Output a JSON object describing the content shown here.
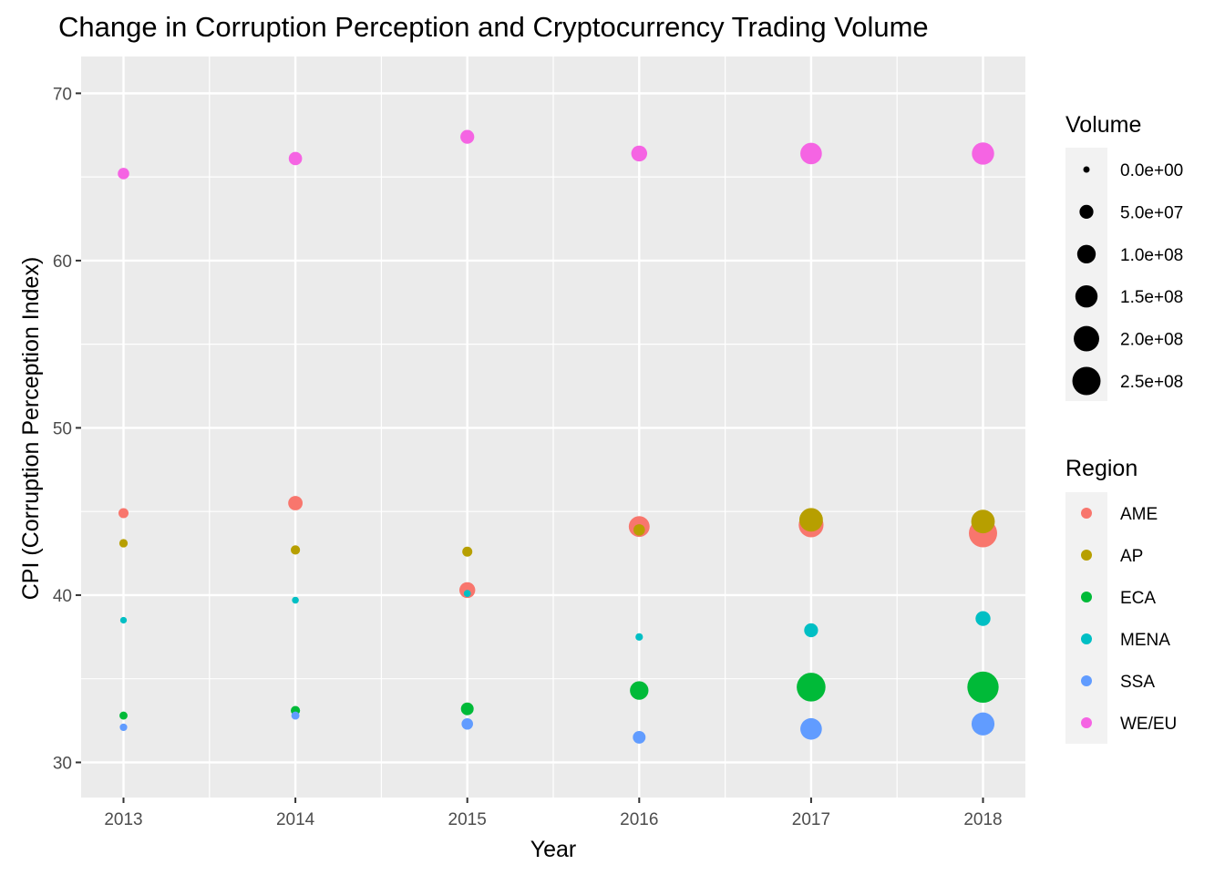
{
  "chart_data": {
    "type": "scatter",
    "title": "Change in Corruption Perception and Cryptocurrency Trading Volume",
    "xlabel": "Year",
    "ylabel": "CPI (Corruption Perception Index)",
    "x_categories": [
      "2013",
      "2014",
      "2015",
      "2016",
      "2017",
      "2018"
    ],
    "ylim": [
      27.9,
      72.2
    ],
    "y_ticks": [
      30,
      40,
      50,
      60,
      70
    ],
    "grid": true,
    "size_legend": {
      "title": "Volume",
      "breaks": [
        0,
        50000000,
        100000000,
        150000000,
        200000000,
        250000000
      ],
      "labels": [
        "0.0e+00",
        "5.0e+07",
        "1.0e+08",
        "1.5e+08",
        "2.0e+08",
        "2.5e+08"
      ]
    },
    "color_legend": {
      "title": "Region",
      "placement": "right"
    },
    "series": [
      {
        "name": "AME",
        "color": "#F8766D",
        "points": [
          {
            "x": "2013",
            "y": 44.9,
            "volume": 20000000
          },
          {
            "x": "2014",
            "y": 45.5,
            "volume": 55000000
          },
          {
            "x": "2015",
            "y": 40.3,
            "volume": 70000000
          },
          {
            "x": "2016",
            "y": 44.1,
            "volume": 130000000
          },
          {
            "x": "2017",
            "y": 44.2,
            "volume": 190000000
          },
          {
            "x": "2018",
            "y": 43.7,
            "volume": 250000000
          }
        ]
      },
      {
        "name": "AP",
        "color": "#B79F00",
        "points": [
          {
            "x": "2013",
            "y": 43.1,
            "volume": 10000000
          },
          {
            "x": "2014",
            "y": 42.7,
            "volume": 15000000
          },
          {
            "x": "2015",
            "y": 42.6,
            "volume": 20000000
          },
          {
            "x": "2016",
            "y": 43.9,
            "volume": 30000000
          },
          {
            "x": "2017",
            "y": 44.5,
            "volume": 170000000
          },
          {
            "x": "2018",
            "y": 44.4,
            "volume": 170000000
          }
        ]
      },
      {
        "name": "ECA",
        "color": "#00BA38",
        "points": [
          {
            "x": "2013",
            "y": 32.8,
            "volume": 8000000
          },
          {
            "x": "2014",
            "y": 33.1,
            "volume": 15000000
          },
          {
            "x": "2015",
            "y": 33.2,
            "volume": 40000000
          },
          {
            "x": "2016",
            "y": 34.3,
            "volume": 100000000
          },
          {
            "x": "2017",
            "y": 34.5,
            "volume": 260000000
          },
          {
            "x": "2018",
            "y": 34.5,
            "volume": 310000000
          }
        ]
      },
      {
        "name": "MENA",
        "color": "#00BFC4",
        "points": [
          {
            "x": "2013",
            "y": 38.5,
            "volume": 1000000
          },
          {
            "x": "2014",
            "y": 39.7,
            "volume": 2000000
          },
          {
            "x": "2015",
            "y": 40.1,
            "volume": 3000000
          },
          {
            "x": "2016",
            "y": 37.5,
            "volume": 5000000
          },
          {
            "x": "2017",
            "y": 37.9,
            "volume": 50000000
          },
          {
            "x": "2018",
            "y": 38.6,
            "volume": 60000000
          }
        ]
      },
      {
        "name": "SSA",
        "color": "#619CFF",
        "points": [
          {
            "x": "2013",
            "y": 32.1,
            "volume": 5000000
          },
          {
            "x": "2014",
            "y": 32.8,
            "volume": 8000000
          },
          {
            "x": "2015",
            "y": 32.3,
            "volume": 30000000
          },
          {
            "x": "2016",
            "y": 31.5,
            "volume": 40000000
          },
          {
            "x": "2017",
            "y": 32.0,
            "volume": 140000000
          },
          {
            "x": "2018",
            "y": 32.3,
            "volume": 160000000
          }
        ]
      },
      {
        "name": "WE/EU",
        "color": "#F564E3",
        "points": [
          {
            "x": "2013",
            "y": 65.2,
            "volume": 30000000
          },
          {
            "x": "2014",
            "y": 66.1,
            "volume": 45000000
          },
          {
            "x": "2015",
            "y": 67.4,
            "volume": 50000000
          },
          {
            "x": "2016",
            "y": 66.4,
            "volume": 70000000
          },
          {
            "x": "2017",
            "y": 66.4,
            "volume": 140000000
          },
          {
            "x": "2018",
            "y": 66.4,
            "volume": 150000000
          }
        ]
      }
    ]
  }
}
